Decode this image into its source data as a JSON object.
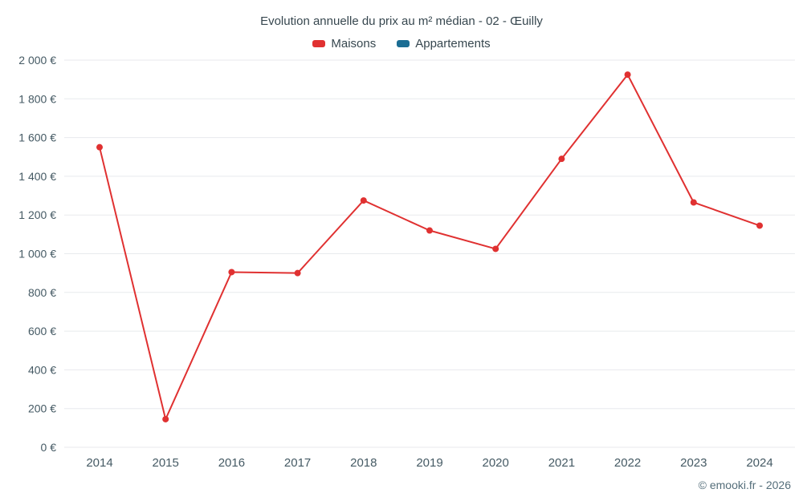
{
  "title": "Evolution annuelle du prix au m² médian - 02 - Œuilly",
  "legend": [
    {
      "label": "Maisons",
      "color": "#e03131"
    },
    {
      "label": "Appartements",
      "color": "#1b6d93"
    }
  ],
  "footer": "© emooki.fr - 2026",
  "colors": {
    "line": "#e03131",
    "grid": "#e8eaed",
    "axis_text": "#455a64"
  },
  "chart_data": {
    "type": "line",
    "title": "Evolution annuelle du prix au m² médian - 02 - Œuilly",
    "categories": [
      "2014",
      "2015",
      "2016",
      "2017",
      "2018",
      "2019",
      "2020",
      "2021",
      "2022",
      "2023",
      "2024"
    ],
    "series": [
      {
        "name": "Maisons",
        "color": "#e03131",
        "values": [
          1550,
          145,
          905,
          900,
          1275,
          1120,
          1025,
          1490,
          1925,
          1265,
          1145
        ]
      },
      {
        "name": "Appartements",
        "color": "#1b6d93",
        "values": []
      }
    ],
    "xlabel": "",
    "ylabel": "",
    "ylim": [
      0,
      2000
    ],
    "ytick_step": 200,
    "ytick_suffix": " €",
    "grid": true,
    "legend_position": "top"
  }
}
